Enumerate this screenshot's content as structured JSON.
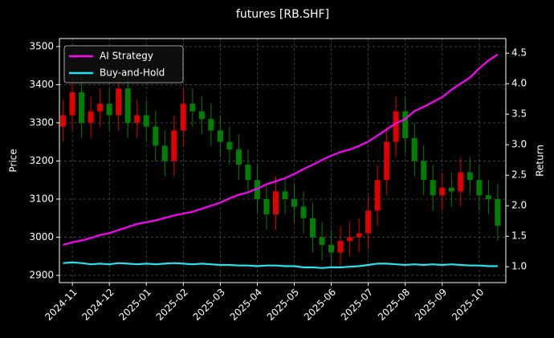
{
  "chart_data": {
    "type": "candlestick",
    "title": "futures [RB.SHF]",
    "ylabel": "Price",
    "y2label": "Return",
    "x": [
      0.75,
      1,
      1.25,
      1.5,
      1.75,
      2,
      2.25,
      2.5,
      2.75,
      3,
      3.25,
      3.5,
      3.75,
      4,
      4.25,
      4.5,
      4.75,
      5,
      5.25,
      5.5,
      5.75,
      6,
      6.25,
      6.5,
      6.75,
      7,
      7.25,
      7.5,
      7.75,
      8,
      8.25,
      8.5,
      8.75,
      9,
      9.25,
      9.5,
      9.75,
      10,
      10.25,
      10.5,
      10.75,
      11,
      11.25,
      11.5,
      11.75,
      12,
      12.25,
      12.5
    ],
    "ohlc": {
      "open": [
        3290,
        3320,
        3380,
        3300,
        3330,
        3350,
        3320,
        3390,
        3300,
        3320,
        3290,
        3240,
        3200,
        3280,
        3350,
        3330,
        3310,
        3280,
        3250,
        3230,
        3190,
        3150,
        3100,
        3060,
        3120,
        3100,
        3080,
        3050,
        3000,
        2980,
        2960,
        2990,
        3000,
        3010,
        3070,
        3150,
        3250,
        3330,
        3260,
        3200,
        3150,
        3110,
        3130,
        3120,
        3170,
        3150,
        3110,
        3100
      ],
      "high": [
        3360,
        3420,
        3420,
        3370,
        3390,
        3390,
        3430,
        3430,
        3360,
        3360,
        3330,
        3280,
        3320,
        3390,
        3390,
        3370,
        3350,
        3320,
        3290,
        3270,
        3230,
        3190,
        3140,
        3160,
        3160,
        3140,
        3120,
        3090,
        3040,
        3020,
        3030,
        3040,
        3050,
        3110,
        3190,
        3290,
        3370,
        3370,
        3300,
        3240,
        3190,
        3170,
        3170,
        3210,
        3210,
        3190,
        3150,
        3140
      ],
      "low": [
        3250,
        3280,
        3260,
        3260,
        3290,
        3280,
        3280,
        3260,
        3260,
        3250,
        3200,
        3160,
        3160,
        3240,
        3290,
        3270,
        3240,
        3210,
        3190,
        3150,
        3110,
        3060,
        3020,
        3020,
        3060,
        3040,
        3010,
        2960,
        2940,
        2920,
        2920,
        2950,
        2960,
        2970,
        3030,
        3110,
        3210,
        3220,
        3160,
        3110,
        3070,
        3070,
        3080,
        3080,
        3110,
        3070,
        3060,
        2990
      ],
      "close": [
        3320,
        3380,
        3300,
        3330,
        3350,
        3320,
        3390,
        3300,
        3320,
        3290,
        3240,
        3200,
        3280,
        3350,
        3330,
        3310,
        3280,
        3250,
        3230,
        3190,
        3150,
        3100,
        3060,
        3120,
        3100,
        3080,
        3050,
        3000,
        2980,
        2960,
        2990,
        3000,
        3010,
        3070,
        3150,
        3250,
        3330,
        3260,
        3200,
        3150,
        3110,
        3130,
        3120,
        3170,
        3150,
        3110,
        3100,
        3030
      ]
    },
    "up_color": "#e00000",
    "down_color": "#008000",
    "series": [
      {
        "name": "AI Strategy",
        "color": "#ff00ff",
        "axis": "y2",
        "values": [
          1.36,
          1.4,
          1.43,
          1.47,
          1.52,
          1.55,
          1.6,
          1.65,
          1.7,
          1.73,
          1.76,
          1.8,
          1.84,
          1.87,
          1.9,
          1.95,
          2.0,
          2.05,
          2.12,
          2.18,
          2.22,
          2.28,
          2.35,
          2.4,
          2.45,
          2.52,
          2.6,
          2.67,
          2.75,
          2.82,
          2.88,
          2.92,
          2.98,
          3.05,
          3.15,
          3.25,
          3.35,
          3.42,
          3.55,
          3.62,
          3.7,
          3.78,
          3.9,
          4.0,
          4.1,
          4.25,
          4.38,
          4.48
        ]
      },
      {
        "name": "Buy-and-Hold",
        "color": "#22e5ee",
        "axis": "y2",
        "values": [
          1.06,
          1.07,
          1.06,
          1.04,
          1.05,
          1.04,
          1.06,
          1.05,
          1.04,
          1.05,
          1.04,
          1.05,
          1.06,
          1.05,
          1.04,
          1.05,
          1.04,
          1.03,
          1.03,
          1.02,
          1.02,
          1.01,
          1.02,
          1.02,
          1.01,
          1.01,
          0.99,
          0.99,
          0.98,
          0.99,
          0.99,
          1.0,
          1.01,
          1.03,
          1.05,
          1.05,
          1.04,
          1.03,
          1.04,
          1.03,
          1.04,
          1.03,
          1.04,
          1.03,
          1.02,
          1.02,
          1.01,
          1.01
        ]
      }
    ],
    "xlim": [
      0.65,
      12.72
    ],
    "xticks": [
      {
        "value": 1,
        "label": "2024-11"
      },
      {
        "value": 2,
        "label": "2024-12"
      },
      {
        "value": 3,
        "label": "2025-01"
      },
      {
        "value": 4,
        "label": "2025-02"
      },
      {
        "value": 5,
        "label": "2025-03"
      },
      {
        "value": 6,
        "label": "2025-04"
      },
      {
        "value": 7,
        "label": "2025-05"
      },
      {
        "value": 8,
        "label": "2025-06"
      },
      {
        "value": 9,
        "label": "2025-07"
      },
      {
        "value": 10,
        "label": "2025-08"
      },
      {
        "value": 11,
        "label": "2025-09"
      },
      {
        "value": 12,
        "label": "2025-10"
      }
    ],
    "ylim": [
      2881,
      3521
    ],
    "yticks": [
      2900,
      3000,
      3100,
      3200,
      3300,
      3400,
      3500
    ],
    "y2lim": [
      0.74,
      4.74
    ],
    "y2ticks": [
      {
        "value": 1,
        "label": "1.0"
      },
      1.5,
      {
        "value": 2,
        "label": "2.0"
      },
      2.5,
      {
        "value": 3,
        "label": "3.0"
      },
      3.5,
      {
        "value": 4,
        "label": "4.0"
      },
      4.5
    ],
    "grid": true,
    "legend": "upper left"
  }
}
